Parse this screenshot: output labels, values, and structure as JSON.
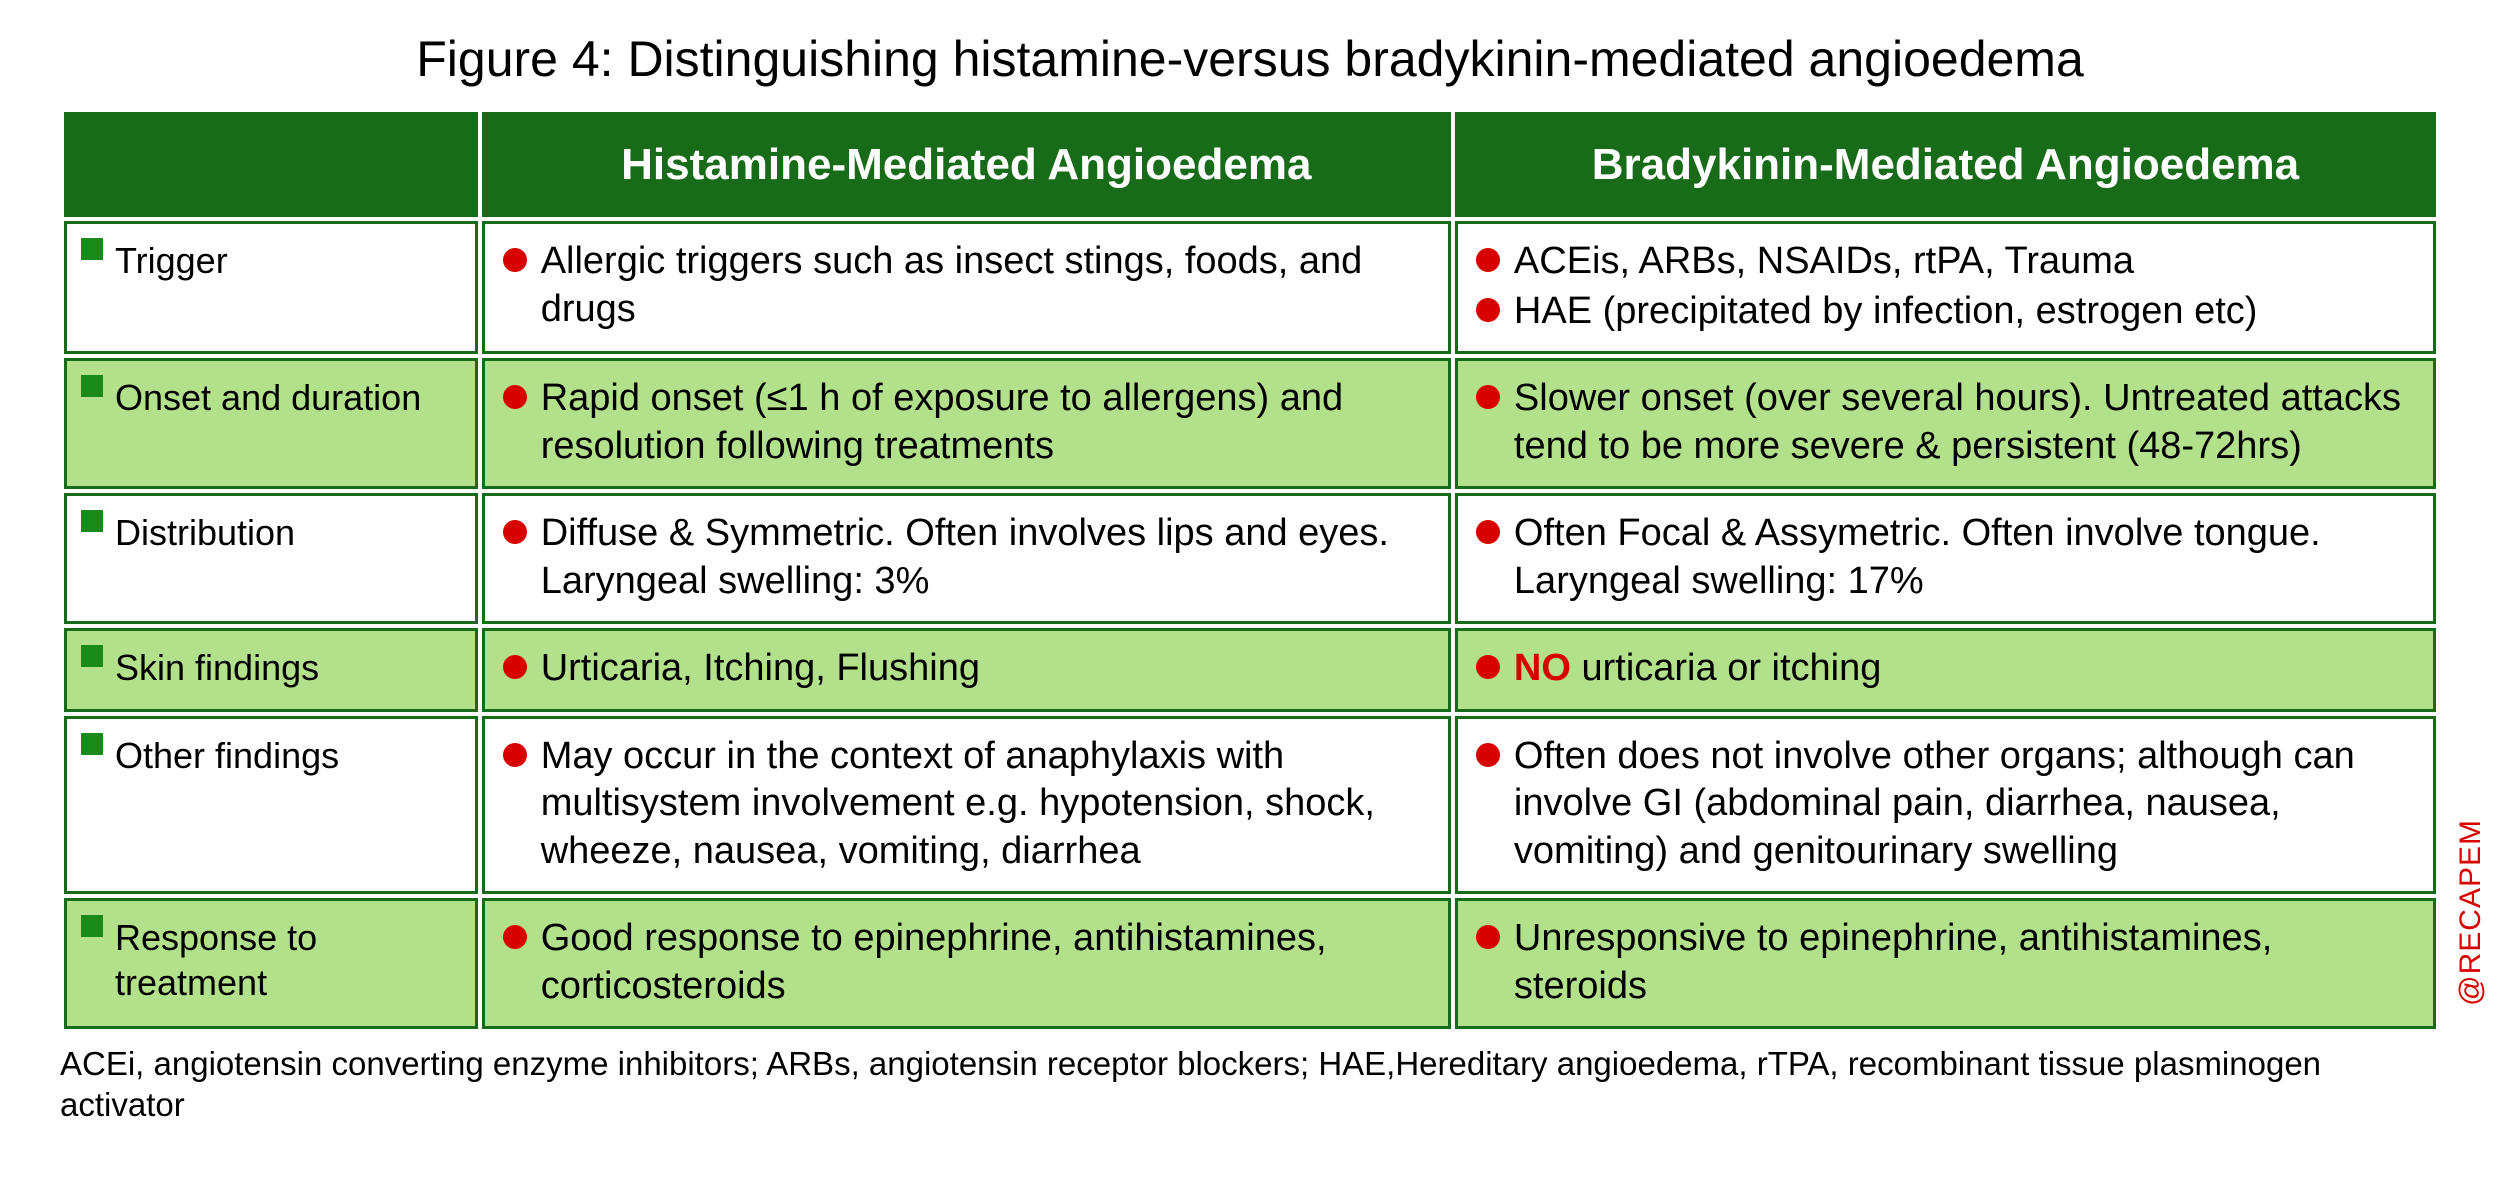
{
  "title": "Figure 4: Distinguishing histamine-versus bradykinin-mediated angioedema",
  "columns": {
    "histamine": "Histamine-Mediated Angioedema",
    "bradykinin": "Bradykinin-Mediated Angioedema"
  },
  "rows": [
    {
      "label": "Trigger",
      "shade": "white",
      "histamine": [
        "Allergic triggers such as insect stings, foods, and drugs"
      ],
      "bradykinin": [
        "ACEis, ARBs, NSAIDs, rtPA, Trauma",
        "HAE (precipitated by infection, estrogen etc)"
      ]
    },
    {
      "label": "Onset and duration",
      "shade": "green",
      "histamine": [
        "Rapid onset (≤1 h of exposure to allergens) and resolution following treatments"
      ],
      "bradykinin": [
        "Slower onset (over several hours). Untreated attacks tend to be more severe & persistent (48-72hrs)"
      ]
    },
    {
      "label": "Distribution",
      "shade": "white",
      "histamine": [
        "Diffuse & Symmetric. Often involves lips and eyes. Laryngeal swelling: 3%"
      ],
      "bradykinin": [
        "Often Focal & Assymetric. Often involve tongue. Laryngeal swelling: 17%"
      ]
    },
    {
      "label": "Skin findings",
      "shade": "green",
      "histamine": [
        "Urticaria, Itching, Flushing"
      ],
      "bradykinin_html": [
        "<span class=\"no-bold\">NO</span> urticaria or itching"
      ]
    },
    {
      "label": "Other findings",
      "shade": "white",
      "histamine": [
        "May occur in the context of anaphylaxis with multisystem involvement e.g. hypotension, shock, wheeze, nausea, vomiting, diarrhea"
      ],
      "bradykinin": [
        "Often does not involve other organs; although can involve GI (abdominal pain, diarrhea, nausea, vomiting) and genitourinary swelling"
      ]
    },
    {
      "label": "Response to treatment",
      "shade": "green",
      "histamine": [
        "Good response to epinephrine, antihistamines, corticosteroids"
      ],
      "bradykinin": [
        "Unresponsive to epinephrine, antihistamines, steroids"
      ]
    }
  ],
  "footnote": "ACEi, angiotensin converting enzyme inhibitors; ARBs, angiotensin receptor blockers; HAE,Hereditary angioedema, rTPA, recombinant tissue plasminogen activator",
  "watermark": "@RECAPEM",
  "colors": {
    "header_bg": "#186b18",
    "border": "#186b18",
    "alt_row": "#b3e08a",
    "square": "#1a8a1a",
    "dot": "#d90000",
    "emphasis": "#d90000"
  }
}
